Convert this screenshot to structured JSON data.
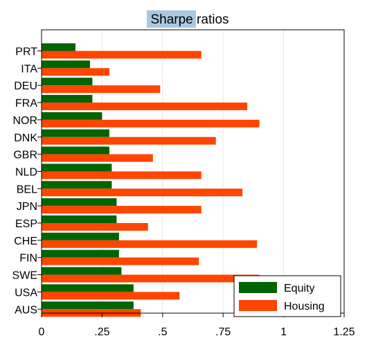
{
  "chart_data": {
    "type": "bar",
    "orientation": "horizontal",
    "title_highlight": "Sharpe",
    "title_rest": " ratios",
    "categories": [
      "PRT",
      "ITA",
      "DEU",
      "FRA",
      "NOR",
      "DNK",
      "GBR",
      "NLD",
      "BEL",
      "JPN",
      "ESP",
      "CHE",
      "FIN",
      "SWE",
      "USA",
      "AUS"
    ],
    "series": [
      {
        "name": "Equity",
        "color": "#006400",
        "values": [
          0.14,
          0.2,
          0.21,
          0.21,
          0.25,
          0.28,
          0.28,
          0.29,
          0.29,
          0.31,
          0.31,
          0.32,
          0.32,
          0.33,
          0.38,
          0.38
        ]
      },
      {
        "name": "Housing",
        "color": "#FF4500",
        "values": [
          0.66,
          0.28,
          0.49,
          0.85,
          0.9,
          0.72,
          0.46,
          0.66,
          0.83,
          0.66,
          0.44,
          0.89,
          0.65,
          0.9,
          0.57,
          0.41
        ]
      }
    ],
    "xlim": [
      0,
      1.25
    ],
    "x_ticks": [
      0,
      0.25,
      0.5,
      0.75,
      1,
      1.25
    ],
    "x_tick_labels": [
      "0",
      ".25",
      ".5",
      ".75",
      "1",
      "1.25"
    ],
    "grid": true,
    "legend_position": "bottom-right",
    "title_highlight_color": "#a9c8e2"
  }
}
